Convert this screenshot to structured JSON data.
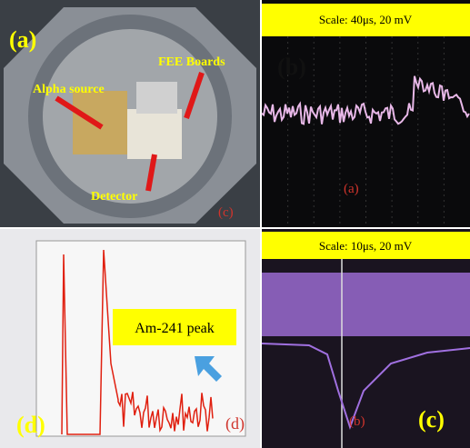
{
  "panels": [
    {
      "label": "(a)",
      "annotations": [
        "FEE Boards",
        "Alpha source",
        "Detector"
      ],
      "corner_label": "(c)"
    },
    {
      "label": "(b)",
      "scale": "Scale: 40μs, 20 mV",
      "screen_label": "(a)"
    },
    {
      "label": "(d)",
      "annotation": "Am-241 peak",
      "corner_label": "(d)"
    },
    {
      "label": "(c)",
      "scale": "Scale: 10μs, 20 mV",
      "screen_label": "(b)"
    }
  ]
}
